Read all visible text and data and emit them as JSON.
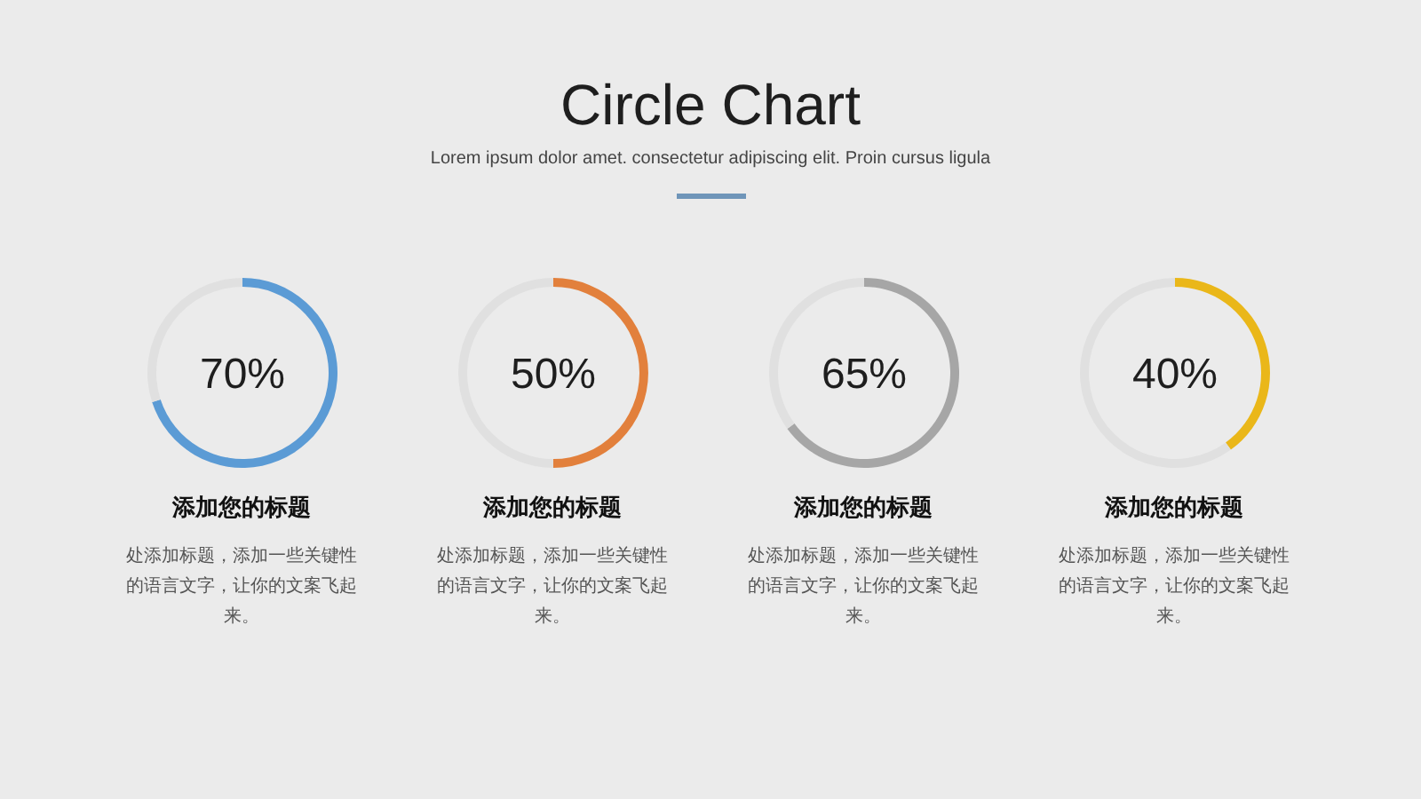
{
  "chart_data": [
    {
      "type": "other",
      "title": "Circle Chart",
      "subtitle": "Lorem ipsum dolor amet. consectetur adipiscing elit. Proin cursus ligula"
    },
    {
      "type": "donut",
      "title": "添加您的标题",
      "categories": [
        null,
        null
      ],
      "values": [
        70,
        30
      ],
      "colors": [
        "#5b9bd5",
        "#e0e0e0"
      ],
      "value_labels": [
        "70%",
        null
      ],
      "annotations": [
        "处添加标题，添加一些关键性的语言文字，让你的文案飞起来。"
      ]
    },
    {
      "type": "donut",
      "title": "添加您的标题",
      "categories": [
        null,
        null
      ],
      "values": [
        50,
        50
      ],
      "colors": [
        "#e2803c",
        "#e0e0e0"
      ],
      "value_labels": [
        "50%",
        null
      ],
      "annotations": [
        "处添加标题，添加一些关键性的语言文字，让你的文案飞起来。"
      ]
    },
    {
      "type": "donut",
      "title": "添加您的标题",
      "categories": [
        null,
        null
      ],
      "values": [
        65,
        35
      ],
      "colors": [
        "#a6a6a6",
        "#e0e0e0"
      ],
      "value_labels": [
        "65%",
        null
      ],
      "annotations": [
        "处添加标题，添加一些关键性的语言文字，让你的文案飞起来。"
      ]
    },
    {
      "type": "donut",
      "title": "添加您的标题",
      "categories": [
        null,
        null
      ],
      "values": [
        40,
        60
      ],
      "colors": [
        "#eab719",
        "#e0e0e0"
      ],
      "value_labels": [
        "40%",
        null
      ],
      "annotations": [
        "处添加标题，添加一些关键性的语言文字，让你的文案飞起来。"
      ]
    }
  ]
}
